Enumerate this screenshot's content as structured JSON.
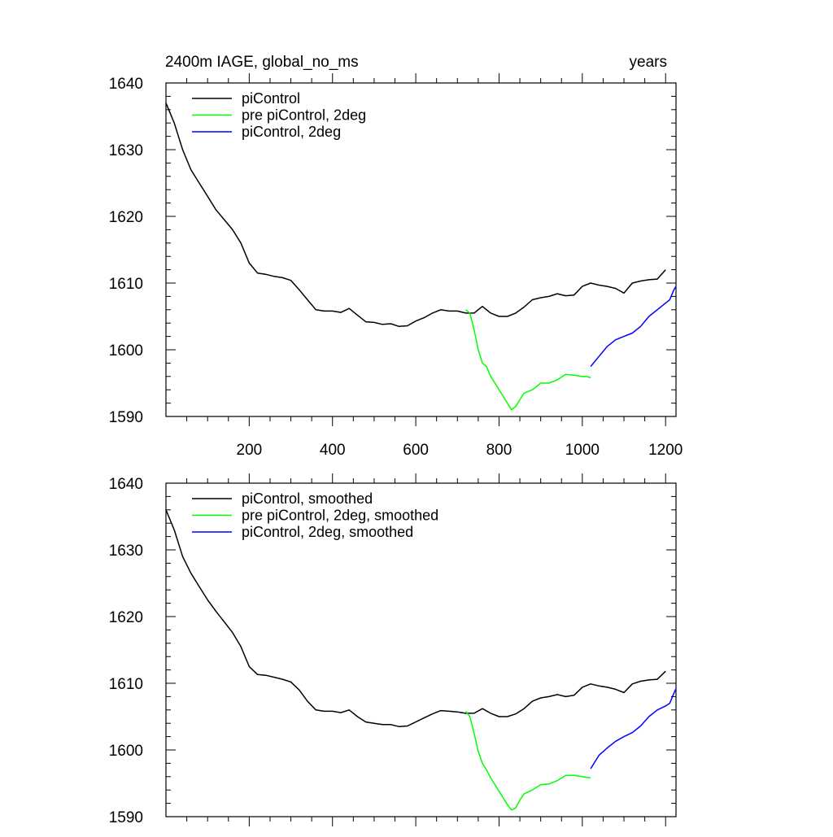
{
  "chart_data": [
    {
      "type": "line",
      "title_left": "2400m IAGE, global_no_ms",
      "title_right": "years",
      "xlim": [
        0,
        1225
      ],
      "ylim": [
        1590,
        1640
      ],
      "xticks": [
        200,
        400,
        600,
        800,
        1000,
        1200
      ],
      "xtick_labels": [
        "200",
        "400",
        "600",
        "800",
        "1000",
        "1200"
      ],
      "yticks": [
        1590,
        1600,
        1610,
        1620,
        1630,
        1640
      ],
      "ytick_labels": [
        "1590",
        "1600",
        "1610",
        "1620",
        "1630",
        "1640"
      ],
      "legend": [
        "piControl",
        "pre piControl, 2deg",
        "piControl, 2deg"
      ],
      "series": [
        {
          "name": "piControl",
          "color": "#000000",
          "x": [
            0,
            20,
            40,
            60,
            80,
            100,
            120,
            140,
            160,
            180,
            200,
            220,
            240,
            260,
            280,
            300,
            320,
            340,
            360,
            380,
            400,
            420,
            440,
            460,
            480,
            500,
            520,
            540,
            560,
            580,
            600,
            620,
            640,
            660,
            680,
            700,
            720,
            740,
            760,
            780,
            800,
            820,
            840,
            860,
            880,
            900,
            920,
            940,
            960,
            980,
            1000,
            1020,
            1040,
            1060,
            1080,
            1100,
            1120,
            1140,
            1160,
            1180,
            1200
          ],
          "y": [
            1637,
            1634,
            1630,
            1627,
            1625,
            1623,
            1621,
            1619.5,
            1618,
            1616,
            1613,
            1611.5,
            1611.3,
            1611,
            1610.8,
            1610.4,
            1609,
            1607.5,
            1606,
            1605.8,
            1605.8,
            1605.6,
            1606.2,
            1605.2,
            1604.2,
            1604.1,
            1603.8,
            1603.9,
            1603.5,
            1603.6,
            1604.3,
            1604.8,
            1605.5,
            1606,
            1605.8,
            1605.8,
            1605.5,
            1605.5,
            1606.5,
            1605.5,
            1605,
            1605,
            1605.5,
            1606.4,
            1607.5,
            1607.8,
            1608,
            1608.4,
            1608.1,
            1608.2,
            1609.5,
            1610,
            1609.7,
            1609.5,
            1609.2,
            1608.5,
            1610,
            1610.3,
            1610.5,
            1610.6,
            1612
          ]
        },
        {
          "name": "pre piControl, 2deg",
          "color": "#00ff00",
          "x": [
            720,
            730,
            740,
            750,
            760,
            770,
            780,
            790,
            800,
            810,
            820,
            830,
            840,
            850,
            860,
            880,
            900,
            920,
            940,
            960,
            980,
            1000,
            1010,
            1020
          ],
          "y": [
            1606,
            1605.5,
            1603,
            1600,
            1598,
            1597.5,
            1596,
            1595,
            1594,
            1593,
            1592,
            1591,
            1591.5,
            1592.5,
            1593.5,
            1594,
            1595,
            1595,
            1595.5,
            1596.3,
            1596.2,
            1596,
            1596,
            1595.8
          ]
        },
        {
          "name": "piControl, 2deg",
          "color": "#0000ff",
          "x": [
            1020,
            1040,
            1060,
            1080,
            1100,
            1120,
            1140,
            1160,
            1180,
            1200,
            1210,
            1220,
            1225
          ],
          "y": [
            1597.5,
            1599,
            1600.5,
            1601.5,
            1602,
            1602.5,
            1603.5,
            1605,
            1606,
            1607,
            1607.5,
            1609,
            1609.5
          ]
        }
      ]
    },
    {
      "type": "line",
      "xlim": [
        0,
        1225
      ],
      "ylim": [
        1590,
        1640
      ],
      "yticks": [
        1590,
        1600,
        1610,
        1620,
        1630,
        1640
      ],
      "ytick_labels": [
        "1590",
        "1600",
        "1610",
        "1620",
        "1630",
        "1640"
      ],
      "legend": [
        "piControl, smoothed",
        "pre piControl, 2deg, smoothed",
        "piControl, 2deg, smoothed"
      ],
      "series": [
        {
          "name": "piControl, smoothed",
          "color": "#000000",
          "x": [
            0,
            20,
            40,
            60,
            80,
            100,
            120,
            140,
            160,
            180,
            200,
            220,
            240,
            260,
            280,
            300,
            320,
            340,
            360,
            380,
            400,
            420,
            440,
            460,
            480,
            500,
            520,
            540,
            560,
            580,
            600,
            620,
            640,
            660,
            680,
            700,
            720,
            740,
            760,
            780,
            800,
            820,
            840,
            860,
            880,
            900,
            920,
            940,
            960,
            980,
            1000,
            1020,
            1040,
            1060,
            1080,
            1100,
            1120,
            1140,
            1160,
            1180,
            1200
          ],
          "y": [
            1636,
            1633,
            1629,
            1626.5,
            1624.5,
            1622.5,
            1620.8,
            1619.2,
            1617.6,
            1615.5,
            1612.5,
            1611.3,
            1611.2,
            1610.9,
            1610.6,
            1610.2,
            1609,
            1607.3,
            1606,
            1605.8,
            1605.8,
            1605.6,
            1606,
            1605,
            1604.2,
            1604,
            1603.8,
            1603.8,
            1603.5,
            1603.6,
            1604.2,
            1604.8,
            1605.4,
            1605.9,
            1605.8,
            1605.7,
            1605.5,
            1605.5,
            1606.2,
            1605.5,
            1605,
            1605,
            1605.4,
            1606.2,
            1607.3,
            1607.8,
            1608,
            1608.3,
            1608,
            1608.2,
            1609.4,
            1609.9,
            1609.6,
            1609.4,
            1609.1,
            1608.6,
            1609.9,
            1610.3,
            1610.5,
            1610.6,
            1611.8
          ]
        },
        {
          "name": "pre piControl, 2deg, smoothed",
          "color": "#00ff00",
          "x": [
            720,
            730,
            740,
            750,
            760,
            770,
            780,
            790,
            800,
            810,
            820,
            830,
            840,
            850,
            860,
            880,
            900,
            920,
            940,
            960,
            980,
            1000,
            1010,
            1020
          ],
          "y": [
            1605.8,
            1605,
            1602.5,
            1599.8,
            1598,
            1597,
            1595.8,
            1594.8,
            1593.8,
            1592.8,
            1591.8,
            1591,
            1591.3,
            1592.5,
            1593.4,
            1594,
            1594.8,
            1594.9,
            1595.4,
            1596.2,
            1596.2,
            1596,
            1595.9,
            1595.8
          ]
        },
        {
          "name": "piControl, 2deg, smoothed",
          "color": "#0000ff",
          "x": [
            1020,
            1040,
            1060,
            1080,
            1100,
            1120,
            1140,
            1160,
            1180,
            1200,
            1210,
            1220,
            1225
          ],
          "y": [
            1597.2,
            1599.2,
            1600.3,
            1601.3,
            1602,
            1602.6,
            1603.6,
            1605,
            1606,
            1606.6,
            1607,
            1608.5,
            1609.2
          ]
        }
      ]
    }
  ]
}
